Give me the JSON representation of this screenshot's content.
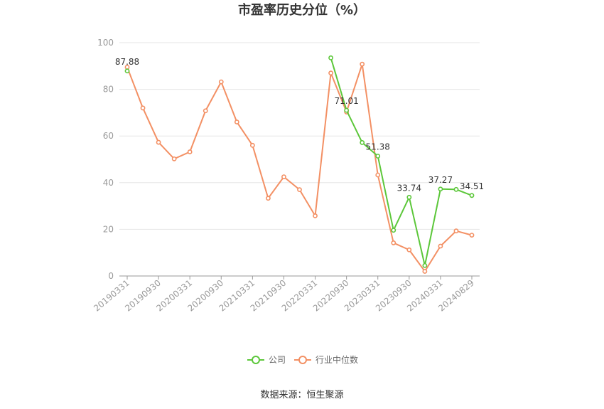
{
  "chart_data": {
    "type": "line",
    "title": "市盈率历史分位（%）",
    "source": "数据来源：恒生聚源",
    "ylim": [
      0,
      100
    ],
    "yticks": [
      "0",
      "20",
      "40",
      "60",
      "80",
      "100"
    ],
    "grid": true,
    "legend_placement": "bottom",
    "categories": [
      "20190331",
      "20190630",
      "20190930",
      "20191231",
      "20200331",
      "20200630",
      "20200930",
      "20201231",
      "20210331",
      "20210630",
      "20210930",
      "20211231",
      "20220331",
      "20220630",
      "20220930",
      "20221231",
      "20230331",
      "20230630",
      "20230930",
      "20231231",
      "20240331",
      "20240630",
      "20240829"
    ],
    "xtick_labels": [
      "20190331",
      "20190930",
      "20200331",
      "20200930",
      "20210331",
      "20210930",
      "20220331",
      "20220930",
      "20230331",
      "20230930",
      "20240331",
      "20240829"
    ],
    "series": [
      {
        "name": "公司",
        "color": "#5cc73a",
        "values": [
          87.88,
          null,
          null,
          null,
          null,
          null,
          null,
          null,
          null,
          null,
          null,
          null,
          null,
          93.5,
          71.01,
          57.2,
          51.38,
          19.6,
          33.74,
          4.5,
          37.27,
          37.1,
          34.51
        ]
      },
      {
        "name": "行业中位数",
        "color": "#f39064",
        "values": [
          89.5,
          72.0,
          57.3,
          50.2,
          53.2,
          70.8,
          83.2,
          66.0,
          56.0,
          33.3,
          42.5,
          37.0,
          25.8,
          87.0,
          70.3,
          90.8,
          43.3,
          14.2,
          11.2,
          2.0,
          12.8,
          19.3,
          17.5
        ]
      }
    ],
    "data_labels": [
      {
        "series": 0,
        "index": 0,
        "text": "87.88"
      },
      {
        "series": 0,
        "index": 14,
        "text": "71.01"
      },
      {
        "series": 0,
        "index": 16,
        "text": "51.38"
      },
      {
        "series": 0,
        "index": 18,
        "text": "33.74"
      },
      {
        "series": 0,
        "index": 20,
        "text": "37.27"
      },
      {
        "series": 0,
        "index": 22,
        "text": "34.51"
      }
    ]
  }
}
